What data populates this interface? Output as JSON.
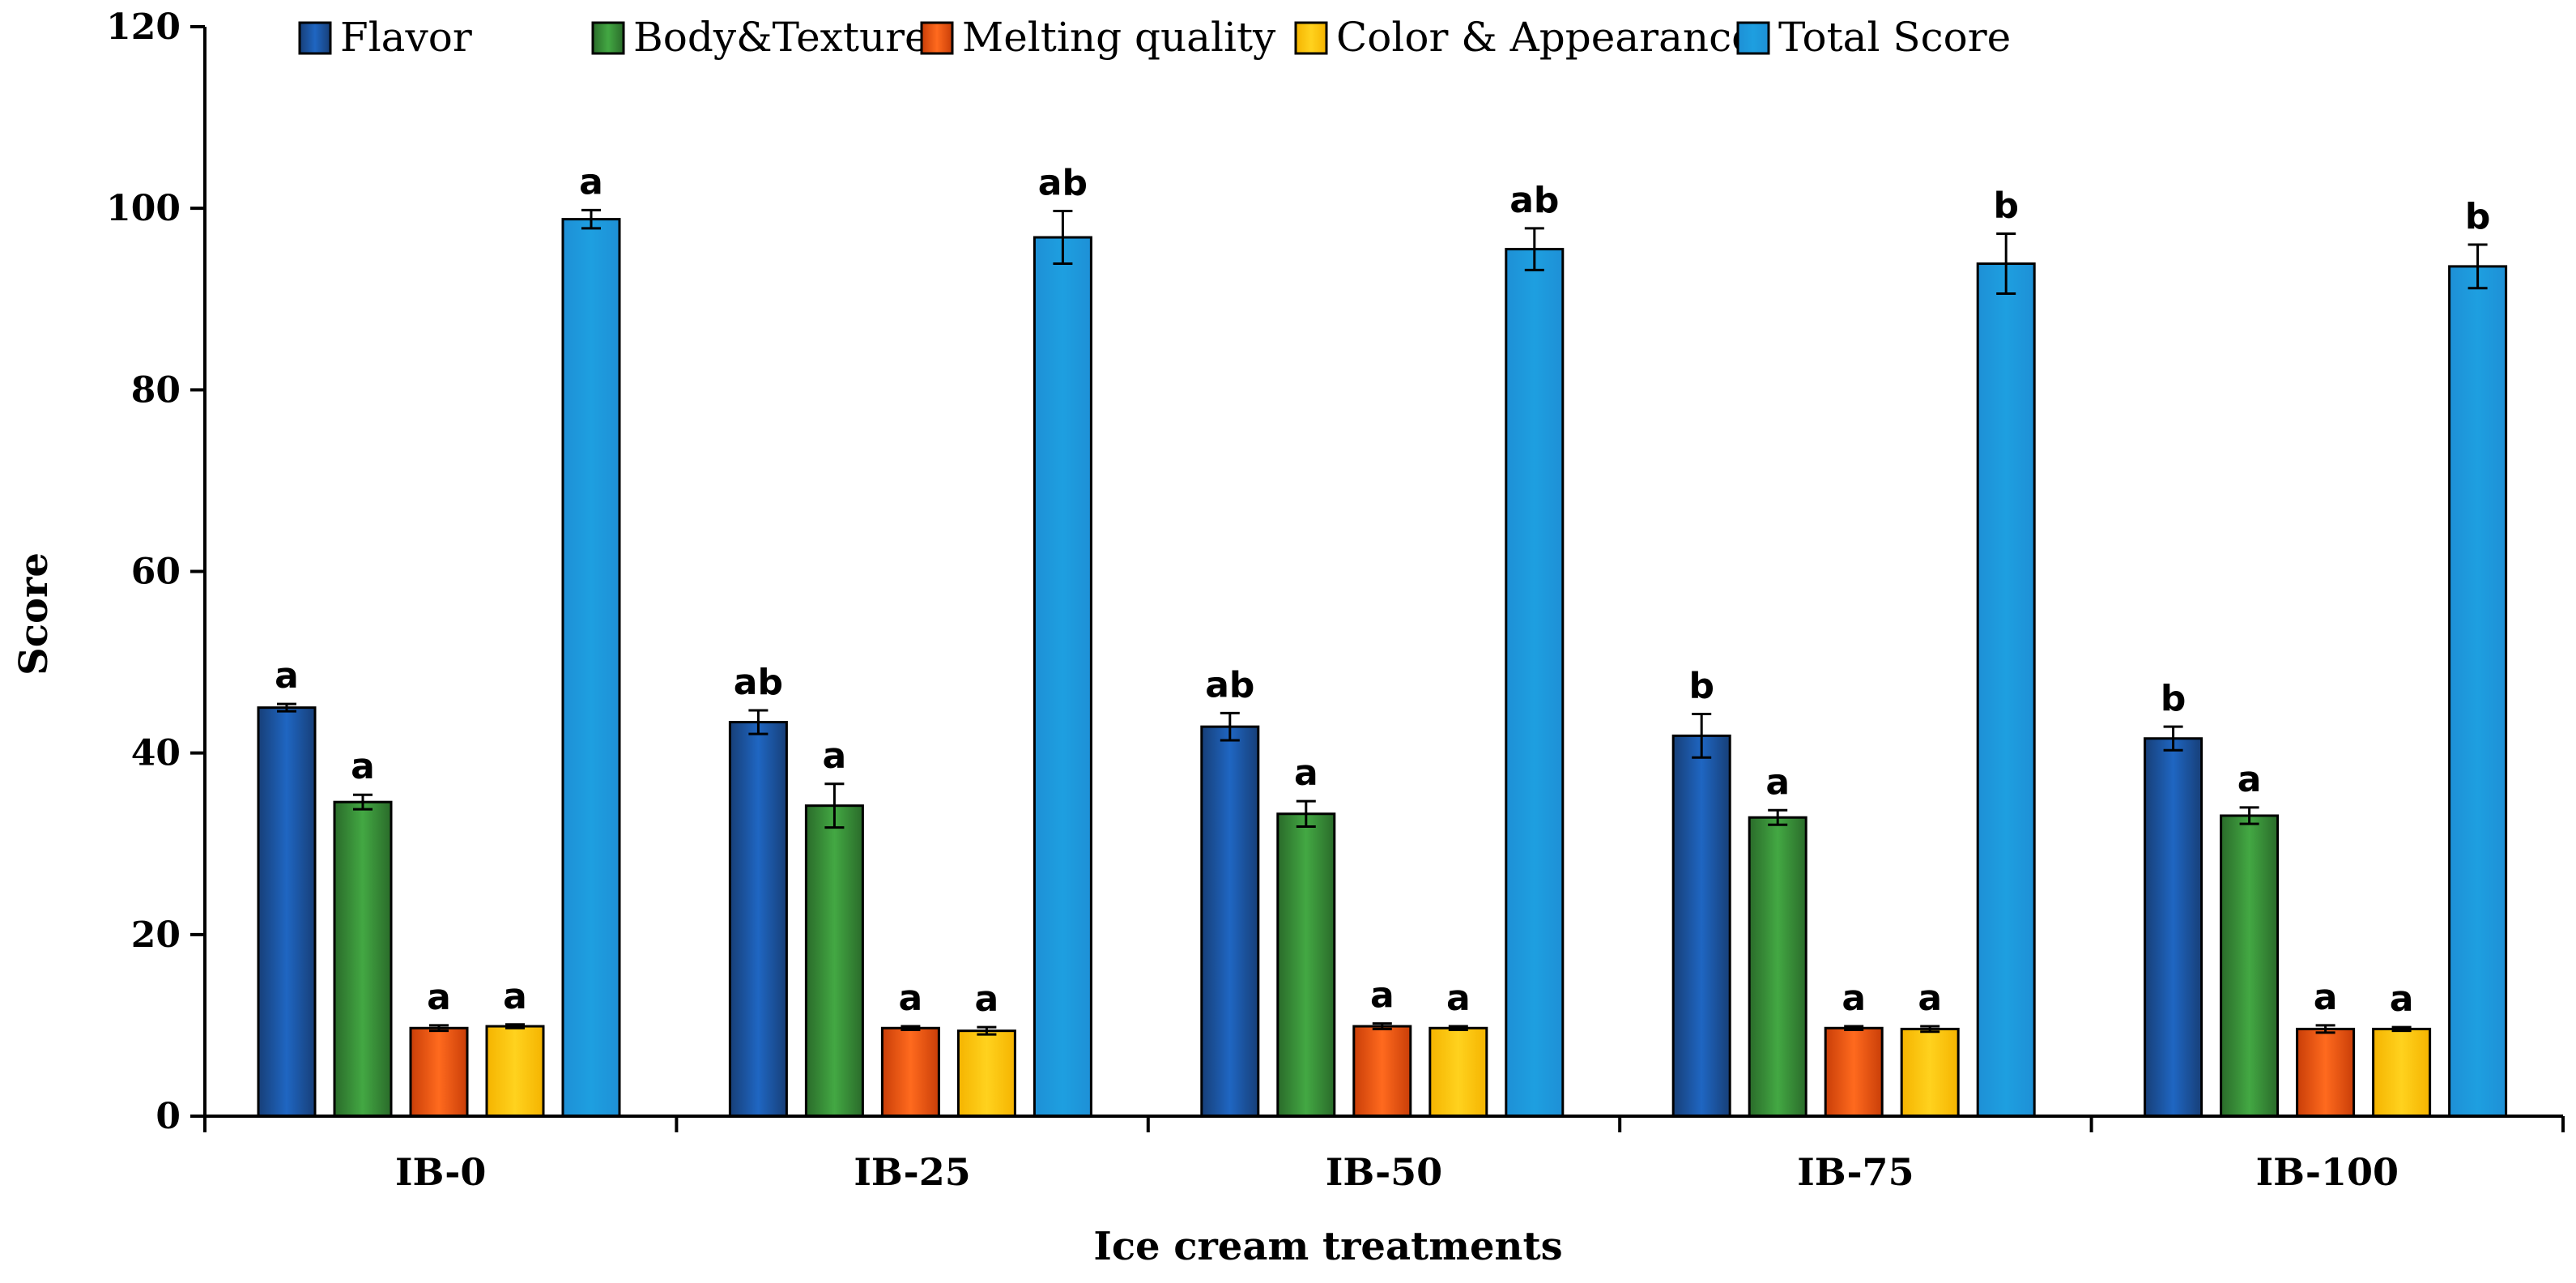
{
  "chart_data": {
    "type": "bar",
    "title": "",
    "xlabel": "Ice cream treatments",
    "ylabel": "Score",
    "ylim": [
      0,
      120
    ],
    "yticks": [
      0,
      20,
      40,
      60,
      80,
      100,
      120
    ],
    "grid": false,
    "legend_position": "top",
    "categories": [
      "IB-0",
      "IB-25",
      "IB-50",
      "IB-75",
      "IB-100"
    ],
    "series": [
      {
        "name": "Flavor",
        "color_dark": "#173f78",
        "color_light": "#1f66c2",
        "values": [
          45.0,
          43.4,
          42.9,
          41.9,
          41.6
        ],
        "errors": [
          0.4,
          1.3,
          1.5,
          2.4,
          1.3
        ],
        "labels": [
          "a",
          "ab",
          "ab",
          "b",
          "b"
        ]
      },
      {
        "name": "Body&Texture",
        "color_dark": "#2a6b2a",
        "color_light": "#43a843",
        "values": [
          34.6,
          34.2,
          33.3,
          32.9,
          33.1
        ],
        "errors": [
          0.8,
          2.4,
          1.4,
          0.8,
          0.9
        ],
        "labels": [
          "a",
          "a",
          "a",
          "a",
          "a"
        ]
      },
      {
        "name": "Melting quality",
        "color_dark": "#c93e08",
        "color_light": "#ff6a1e",
        "values": [
          9.7,
          9.7,
          9.9,
          9.7,
          9.6
        ],
        "errors": [
          0.3,
          0.2,
          0.3,
          0.2,
          0.4
        ],
        "labels": [
          "a",
          "a",
          "a",
          "a",
          "a"
        ]
      },
      {
        "name": "Color & Appearance",
        "color_dark": "#f5b400",
        "color_light": "#ffd21e",
        "values": [
          9.9,
          9.4,
          9.7,
          9.6,
          9.6
        ],
        "errors": [
          0.2,
          0.4,
          0.2,
          0.3,
          0.2
        ],
        "labels": [
          "a",
          "a",
          "a",
          "a",
          "a"
        ]
      },
      {
        "name": "Total Score",
        "color_dark": "#1e90d6",
        "color_light": "#1e9fe0",
        "values": [
          98.8,
          96.8,
          95.5,
          93.9,
          93.6
        ],
        "errors": [
          1.0,
          2.9,
          2.3,
          3.3,
          2.4
        ],
        "labels": [
          "a",
          "ab",
          "ab",
          "b",
          "b"
        ]
      }
    ]
  }
}
